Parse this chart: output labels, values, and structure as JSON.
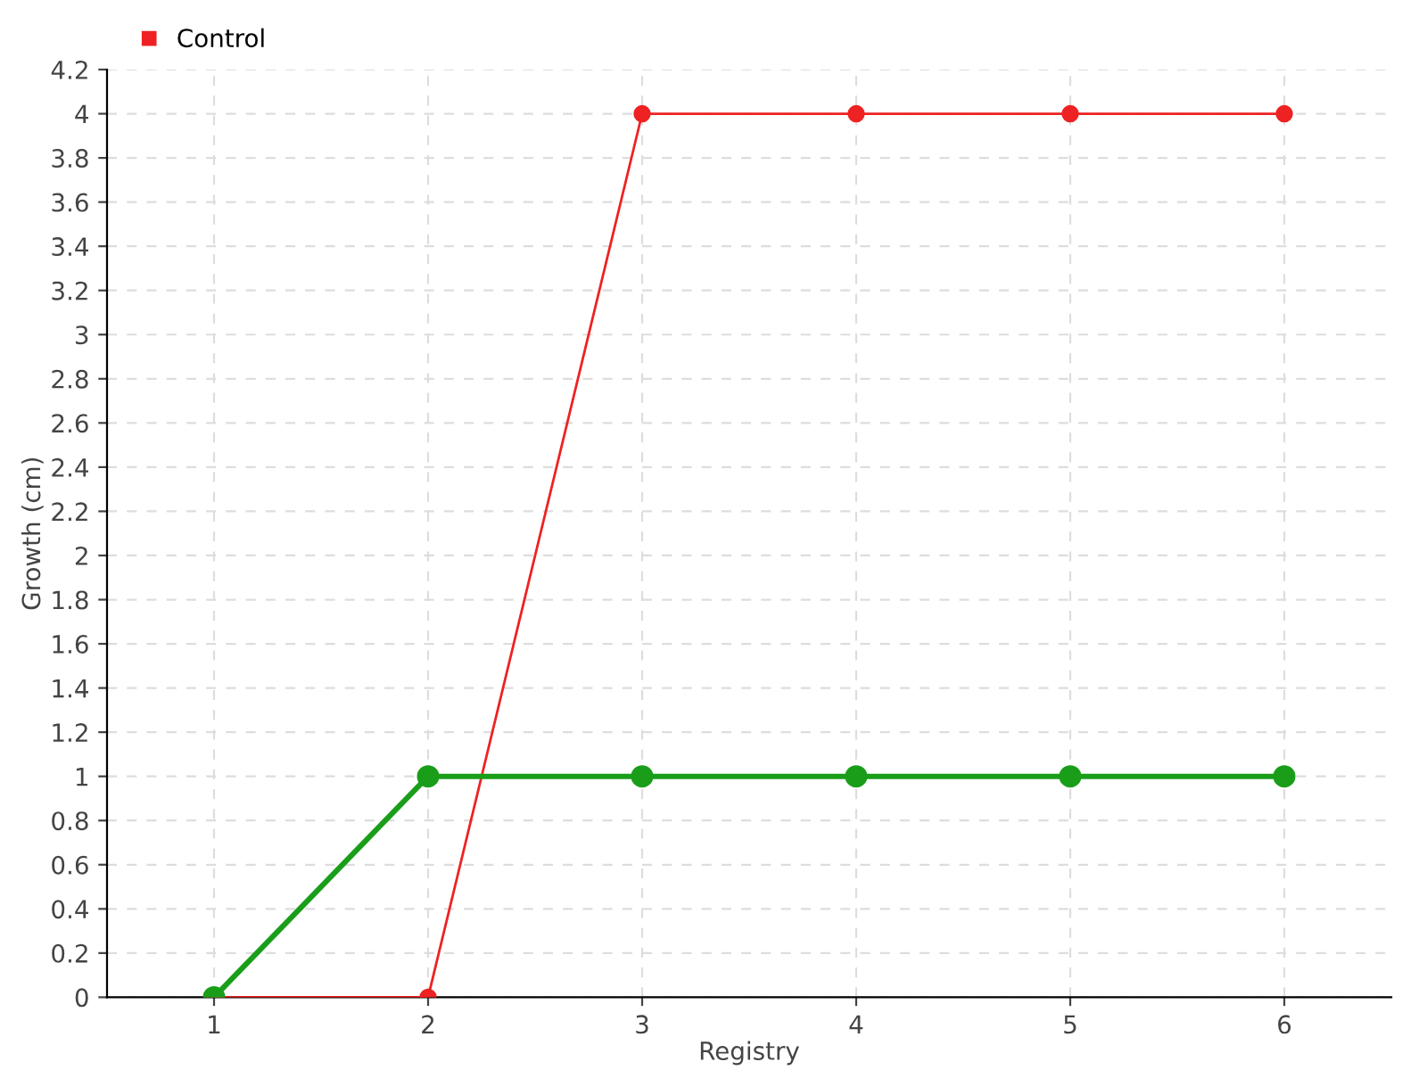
{
  "chart_data": {
    "type": "line",
    "xlabel": "Registry",
    "ylabel": "Growth (cm)",
    "x": [
      1,
      2,
      3,
      4,
      5,
      6
    ],
    "series": [
      {
        "color": "#1a9e1a",
        "values": [
          0,
          1,
          1,
          1,
          1,
          1
        ]
      },
      {
        "name": "Control",
        "color": "#ee2222",
        "values": [
          0,
          0,
          4,
          4,
          4,
          4
        ]
      }
    ],
    "xlim": [
      0.5,
      6.5
    ],
    "xticks": [
      1,
      2,
      3,
      4,
      5,
      6
    ],
    "ylim": [
      0,
      4.2
    ],
    "yticks": [
      0,
      0.2,
      0.4,
      0.6,
      0.8,
      1,
      1.2,
      1.4,
      1.6,
      1.8,
      2,
      2.2,
      2.4,
      2.6,
      2.8,
      3,
      3.2,
      3.4,
      3.6,
      3.8,
      4,
      4.2
    ],
    "grid": true,
    "legend": "top left",
    "marker": "circle",
    "line_style": "solid"
  }
}
